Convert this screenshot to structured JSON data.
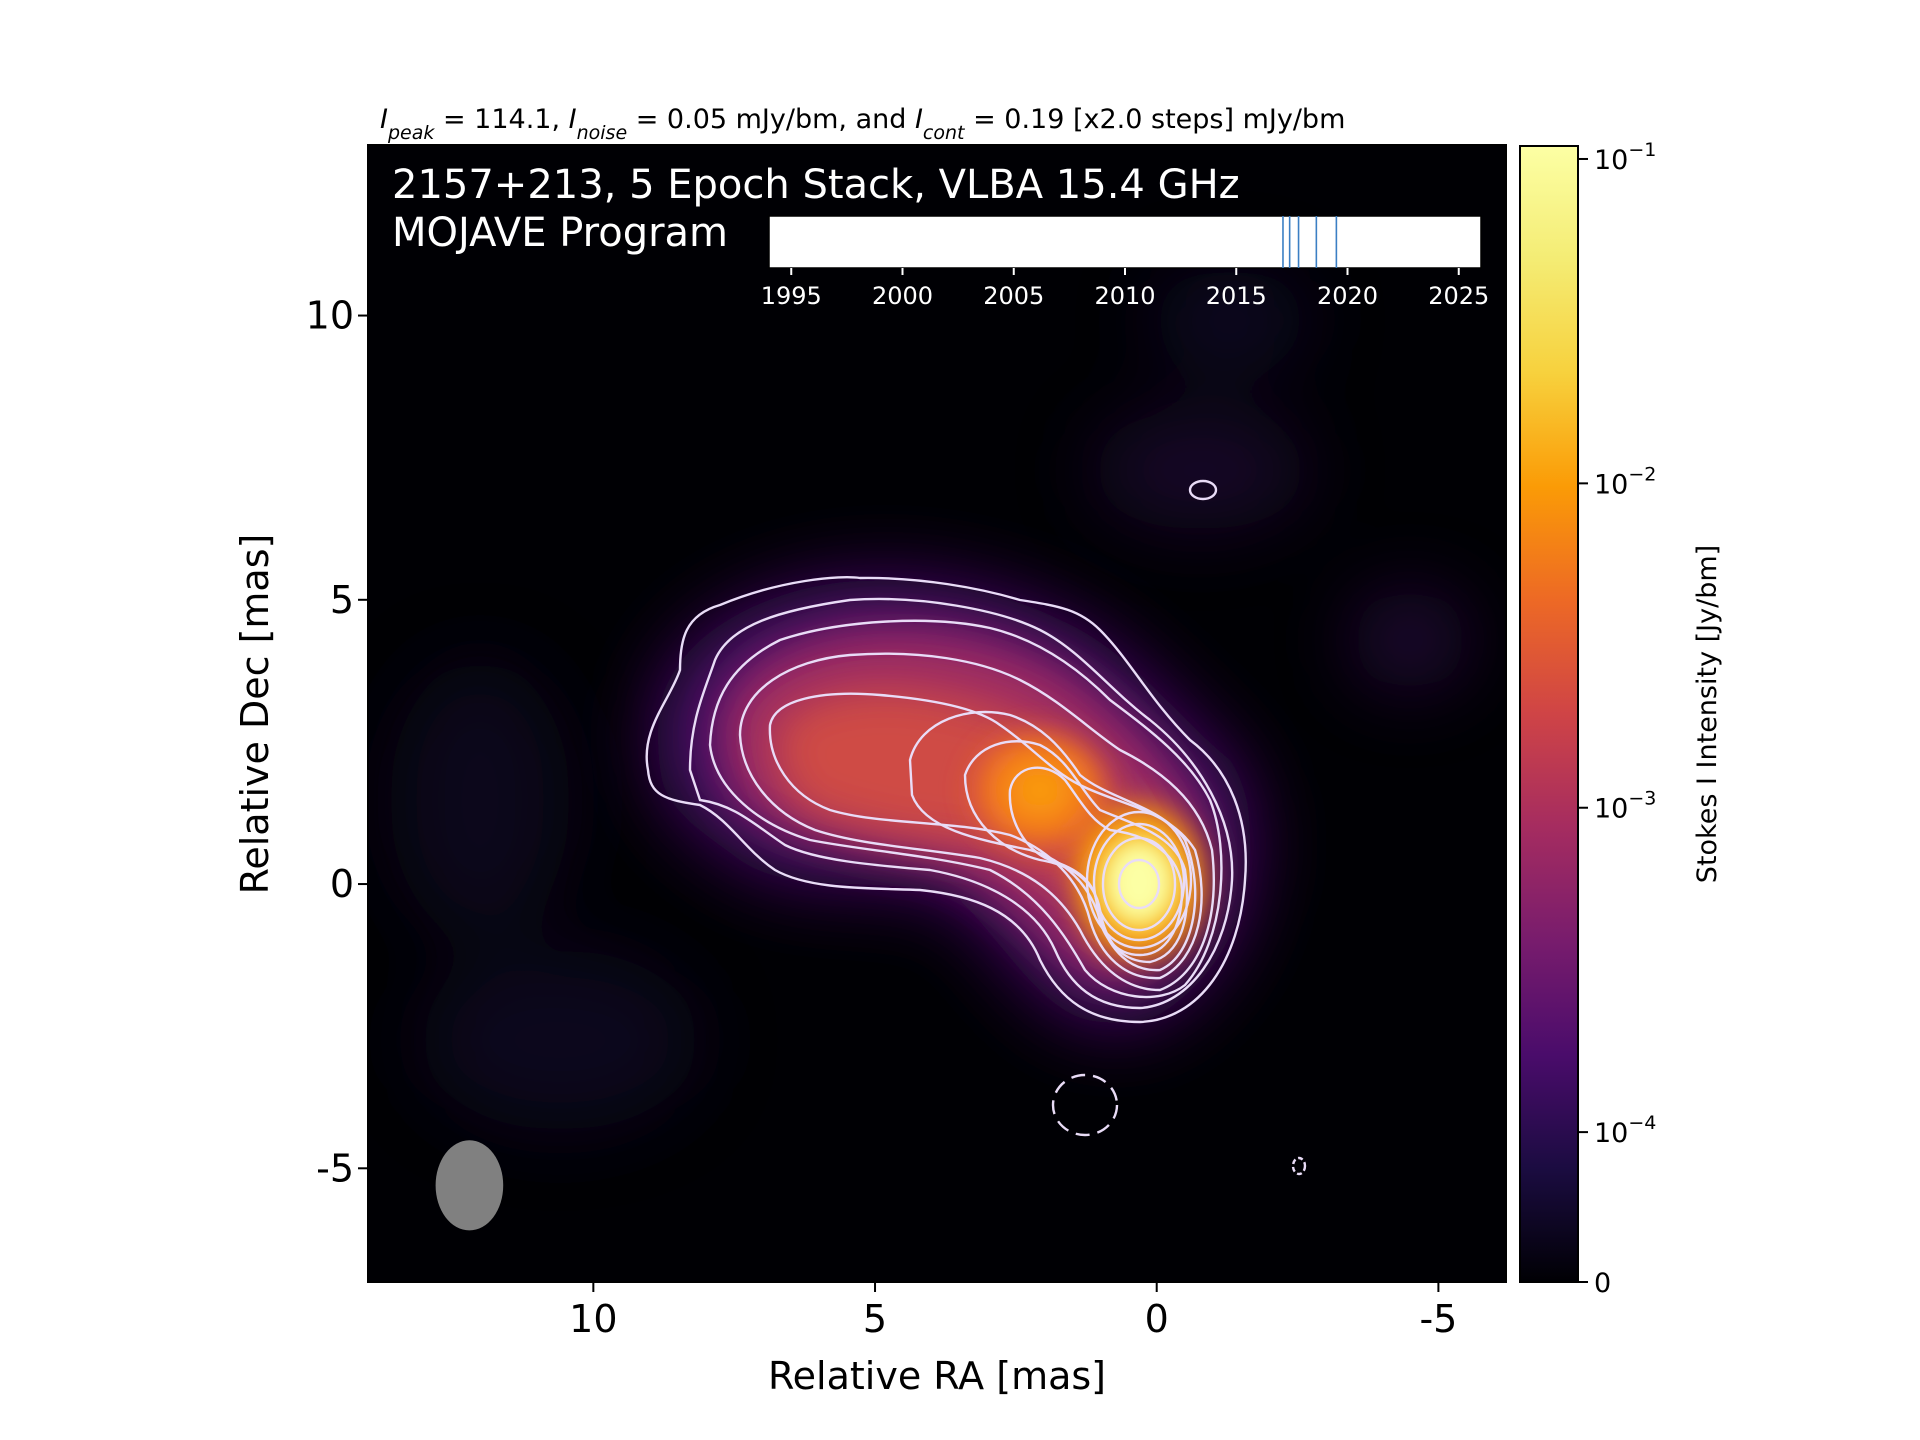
{
  "chart_data": {
    "type": "heatmap",
    "title_parts": {
      "peak_sub": "peak",
      "peak_text": " = 114.1, ",
      "noise_sub": "noise",
      "noise_text": " = 0.05 mJy/bm, and ",
      "cont_sub": "cont",
      "cont_text": " = 0.19 [x2.0 steps] mJy/bm",
      "symbol": "I"
    },
    "annotation_line1": "2157+213, 5 Epoch Stack, VLBA 15.4 GHz",
    "annotation_line2": "MOJAVE Program",
    "xlabel": "Relative RA [mas]",
    "ylabel": "Relative Dec [mas]",
    "xlim": [
      14,
      -6.2
    ],
    "ylim": [
      -7,
      13
    ],
    "xticks": [
      10,
      5,
      0,
      -5
    ],
    "xtick_labels": [
      "10",
      "5",
      "0",
      "-5"
    ],
    "yticks": [
      10,
      5,
      0,
      -5
    ],
    "ytick_labels": [
      "10",
      "5",
      "0",
      "-5"
    ],
    "colorbar": {
      "label": "Stokes I Intensity [Jy/bm]",
      "scale": "log",
      "ticks": [
        {
          "base": "10",
          "exp": "−1",
          "value": 0.1
        },
        {
          "base": "10",
          "exp": "−2",
          "value": 0.01
        },
        {
          "base": "10",
          "exp": "−3",
          "value": 0.001
        },
        {
          "base": "10",
          "exp": "−4",
          "value": 0.0001
        },
        {
          "base": "0",
          "exp": "",
          "value": 0
        }
      ],
      "colormap": "inferno"
    },
    "components": [
      {
        "ra": 0.0,
        "dec": 0.0,
        "peak_jy": 0.1141
      },
      {
        "ra": 2.0,
        "dec": 1.8,
        "peak_jy": 0.02
      },
      {
        "ra": 5.5,
        "dec": 2.8,
        "peak_jy": 0.004
      }
    ],
    "beam": {
      "ra": 12.2,
      "dec": -5.3,
      "major_mas": 1.6,
      "minor_mas": 1.2
    },
    "epoch_timeline": {
      "xlim": [
        1994,
        2026
      ],
      "ticks": [
        1995,
        2000,
        2005,
        2010,
        2015,
        2020,
        2025
      ],
      "tick_labels": [
        "1995",
        "2000",
        "2005",
        "2010",
        "2015",
        "2020",
        "2025"
      ],
      "epochs": [
        2017.1,
        2017.4,
        2017.8,
        2018.6,
        2019.5
      ]
    }
  }
}
